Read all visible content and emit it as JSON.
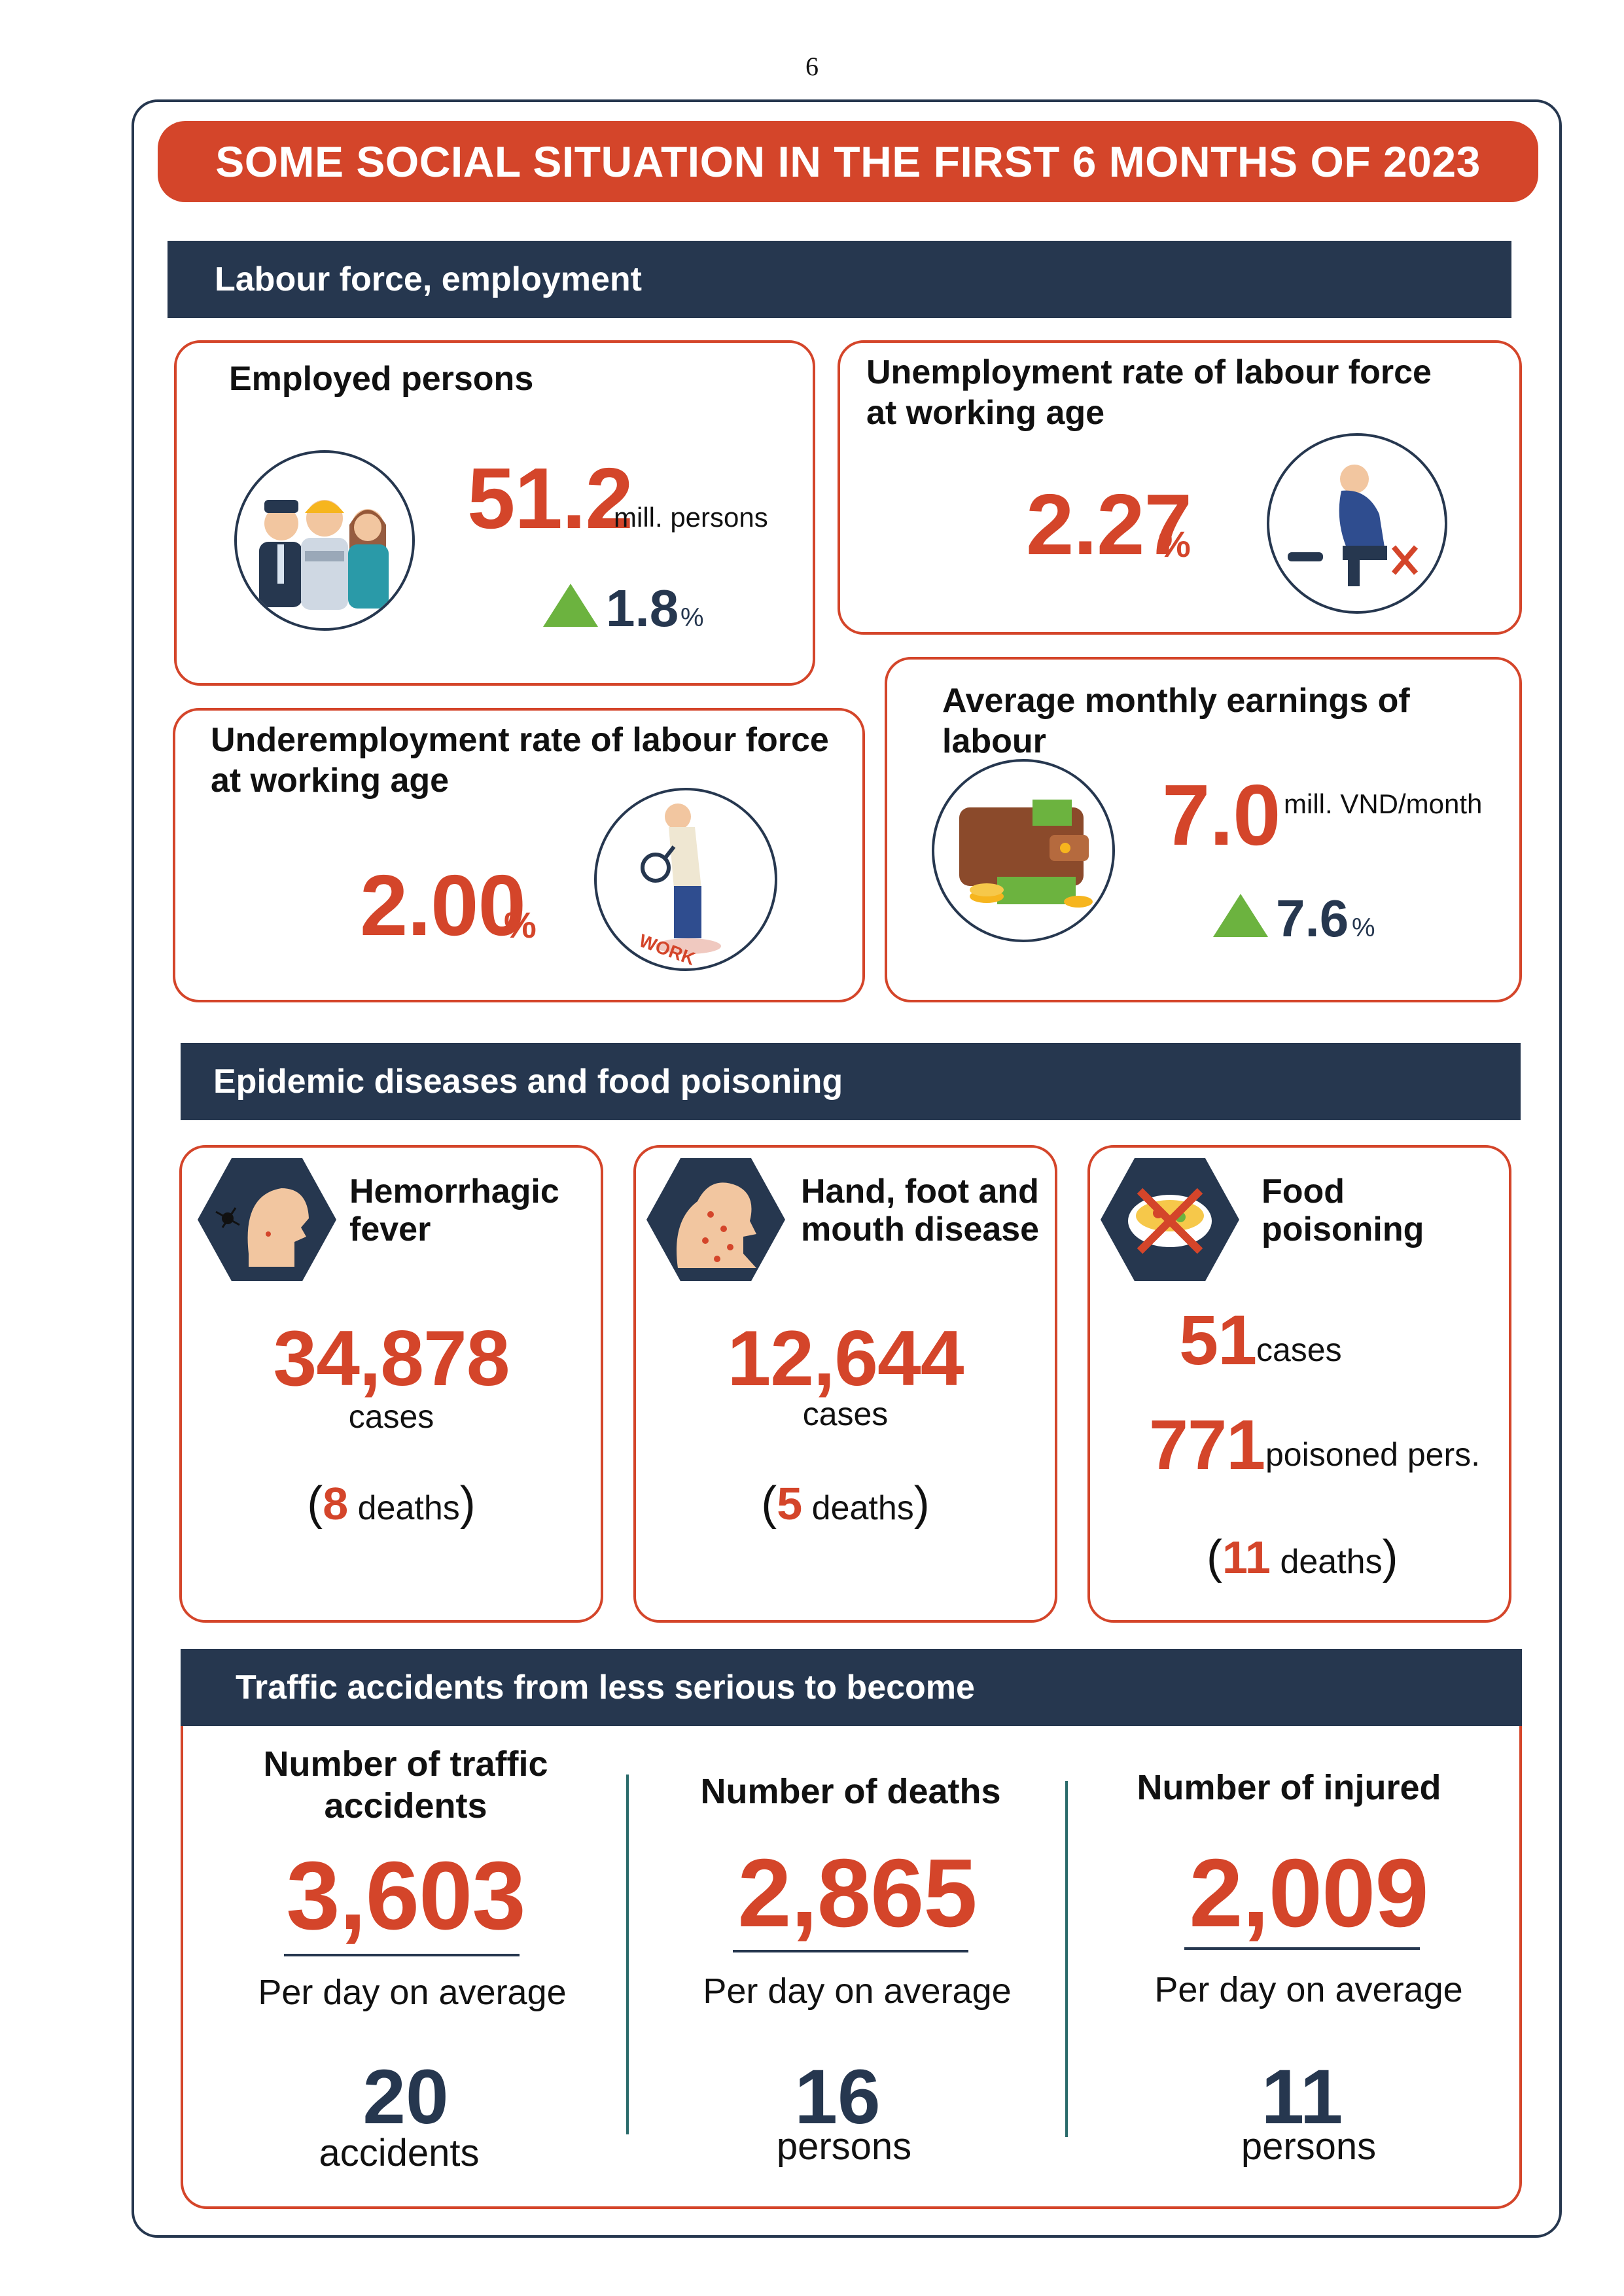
{
  "page_number": "6",
  "title": "SOME SOCIAL SITUATION IN THE FIRST 6 MONTHS OF 2023",
  "colors": {
    "accent": "#d4452a",
    "navy": "#26374f",
    "up": "#6cb33f"
  },
  "labour": {
    "heading": "Labour force, employment",
    "employed": {
      "label": "Employed persons",
      "value": "51.2",
      "unit": "mill. persons",
      "change": "1.8",
      "change_unit": "%",
      "icon": "workers-icon"
    },
    "unemployment": {
      "label_line1": "Unemployment rate of labour force",
      "label_line2": "at working age",
      "value": "2.27",
      "unit": "%",
      "icon": "sad-man-icon"
    },
    "underemployment": {
      "label_line1": "Underemployment rate of labour force",
      "label_line2": "at working age",
      "value": "2.00",
      "unit": "%",
      "icon": "searching-work-icon"
    },
    "earnings": {
      "label": "Average monthly earnings of labour",
      "value": "7.0",
      "unit": "mill. VND/month",
      "change": "7.6",
      "change_unit": "%",
      "icon": "wallet-icon"
    }
  },
  "epidemic": {
    "heading": "Epidemic diseases and food poisoning",
    "hemorrhagic": {
      "label_line1": "Hemorrhagic",
      "label_line2": "fever",
      "value": "34,878",
      "unit": "cases",
      "deaths_open": "(",
      "deaths_value": "8",
      "deaths_label": "deaths",
      "deaths_close": ")",
      "icon": "mosquito-icon"
    },
    "hfmd": {
      "label_line1": "Hand, foot and",
      "label_line2": "mouth disease",
      "value": "12,644",
      "unit": "cases",
      "deaths_open": "(",
      "deaths_value": "5",
      "deaths_label": "deaths",
      "deaths_close": ")",
      "icon": "rash-face-icon"
    },
    "food": {
      "label_line1": "Food",
      "label_line2": "poisoning",
      "cases_value": "51",
      "cases_unit": "cases",
      "persons_value": "771",
      "persons_unit": "poisoned pers.",
      "deaths_open": "(",
      "deaths_value": "11",
      "deaths_label": "deaths",
      "deaths_close": ")",
      "icon": "food-bowl-icon"
    }
  },
  "traffic": {
    "heading": "Traffic accidents from less serious to become",
    "columns": [
      {
        "label_line1": "Number of traffic",
        "label_line2": "accidents",
        "value": "3,603",
        "per_day_label": "Per day on average",
        "per_day_value": "20",
        "per_day_unit": "accidents"
      },
      {
        "label_line1": "Number of deaths",
        "label_line2": "",
        "value": "2,865",
        "per_day_label": "Per day on average",
        "per_day_value": "16",
        "per_day_unit": "persons"
      },
      {
        "label_line1": "Number of injured",
        "label_line2": "",
        "value": "2,009",
        "per_day_label": "Per day on average",
        "per_day_value": "11",
        "per_day_unit": "persons"
      }
    ]
  }
}
